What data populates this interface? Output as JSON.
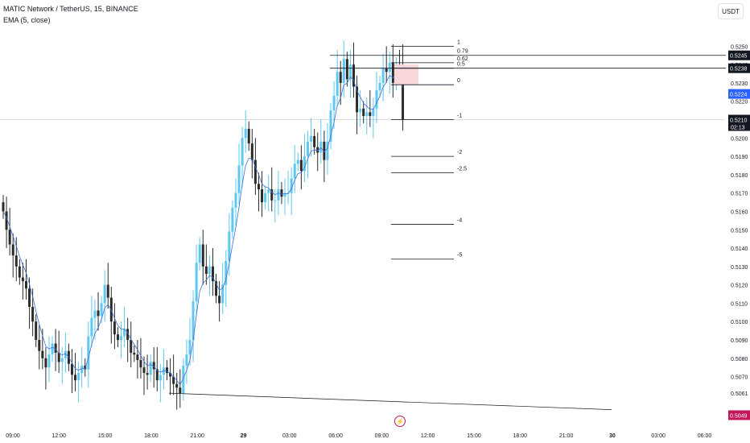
{
  "legend": {
    "title": "MATIC Network / TetherUS, 15, BINANCE",
    "indicator": "EMA (5, close)"
  },
  "currency": "USDT",
  "colors": {
    "up": "#5ec8f2",
    "down": "#2b2b2b",
    "ema": "#3b6fd6",
    "level": "#131722",
    "current_price_bg": "#131722",
    "ema_price_bg": "#2962ff",
    "low_price_bg": "#c2185b",
    "zone": "#f8d7d9"
  },
  "icons": {
    "replay": "lightning-icon"
  },
  "chart_data": {
    "type": "candlestick",
    "title": "MATIC Network / TetherUS, 15, BINANCE",
    "interval": "15",
    "exchange": "BINANCE",
    "ylim": [
      0.5047,
      0.5262
    ],
    "y_ticks": [
      "0.5250",
      "0.5240",
      "0.5230",
      "0.5220",
      "0.5210",
      "0.5200",
      "0.5190",
      "0.5180",
      "0.5170",
      "0.5160",
      "0.5150",
      "0.5140",
      "0.5130",
      "0.5120",
      "0.5110",
      "0.5100",
      "0.5090",
      "0.5080",
      "0.5070",
      "0.5061",
      "0.5049"
    ],
    "x_ticks": [
      "09:00",
      "12:00",
      "15:00",
      "18:00",
      "21:00",
      "29",
      "03:00",
      "06:00",
      "09:00",
      "12:00",
      "15:00",
      "18:00",
      "21:00",
      "30",
      "03:00",
      "06:00"
    ],
    "close": [
      0.516,
      0.515,
      0.5142,
      0.5136,
      0.513,
      0.5124,
      0.5122,
      0.5118,
      0.5108,
      0.51,
      0.509,
      0.5084,
      0.508,
      0.5075,
      0.5082,
      0.5088,
      0.5083,
      0.5078,
      0.508,
      0.5084,
      0.5077,
      0.5071,
      0.5068,
      0.5072,
      0.5076,
      0.5074,
      0.5092,
      0.5102,
      0.5106,
      0.5103,
      0.511,
      0.512,
      0.5113,
      0.51,
      0.5093,
      0.509,
      0.5092,
      0.5096,
      0.509,
      0.5083,
      0.5082,
      0.5079,
      0.5075,
      0.5072,
      0.5071,
      0.5078,
      0.5074,
      0.5068,
      0.5071,
      0.5075,
      0.5072,
      0.507,
      0.5066,
      0.5064,
      0.5061,
      0.5076,
      0.5082,
      0.509,
      0.5111,
      0.5132,
      0.5142,
      0.513,
      0.5126,
      0.513,
      0.5122,
      0.5114,
      0.511,
      0.512,
      0.5133,
      0.5149,
      0.5162,
      0.517,
      0.5185,
      0.52,
      0.5205,
      0.5197,
      0.5188,
      0.5175,
      0.5172,
      0.5165,
      0.517,
      0.5172,
      0.5166,
      0.5166,
      0.5172,
      0.5168,
      0.517,
      0.517,
      0.5178,
      0.5186,
      0.5188,
      0.5182,
      0.519,
      0.5198,
      0.5201,
      0.5195,
      0.5192,
      0.5198,
      0.5188,
      0.5198,
      0.5215,
      0.5223,
      0.5236,
      0.523,
      0.5243,
      0.5232,
      0.524,
      0.5228,
      0.5214,
      0.5216,
      0.5212,
      0.5214,
      0.5212,
      0.5216,
      0.5226,
      0.523,
      0.5238,
      0.5236,
      0.5241,
      0.523,
      0.524,
      0.5239,
      0.521
    ],
    "ema_last": 0.5224,
    "current_price": 0.521,
    "countdown": "02:13",
    "fib_levels": [
      {
        "label": "1",
        "price": 0.525
      },
      {
        "label": "0.79",
        "price": 0.5245
      },
      {
        "label": "0.62",
        "price": 0.5241
      },
      {
        "label": "0.5",
        "price": 0.5238
      },
      {
        "label": "0",
        "price": 0.5229
      },
      {
        "label": "-1",
        "price": 0.521
      },
      {
        "label": "-2",
        "price": 0.519
      },
      {
        "label": "-2.5",
        "price": 0.5181
      },
      {
        "label": "-4",
        "price": 0.5153
      },
      {
        "label": "-5",
        "price": 0.5134
      }
    ],
    "price_labels": [
      "0.5245",
      "0.5238"
    ],
    "low_label": "0.5049",
    "trendline_label": "0.5061",
    "grid": false
  }
}
